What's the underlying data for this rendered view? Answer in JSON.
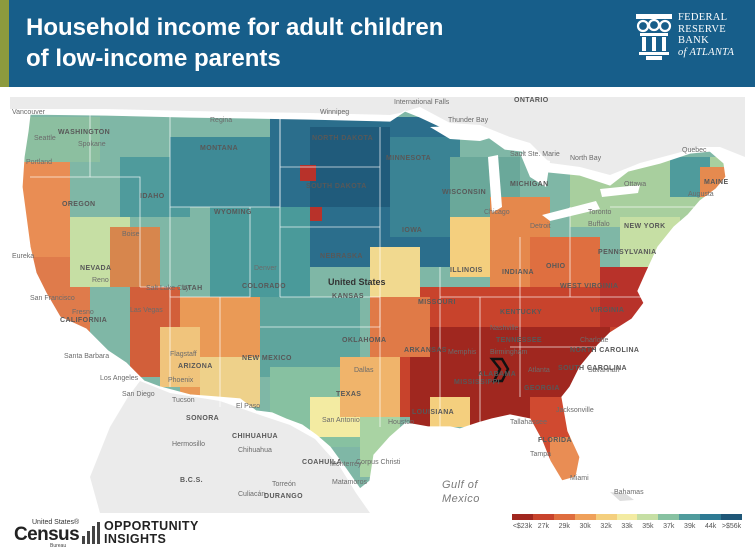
{
  "header": {
    "title": "Household income for adult children\nof low-income parents",
    "logo_lines": [
      "FEDERAL",
      "RESERVE",
      "BANK",
      "of ATLANTA"
    ]
  },
  "map": {
    "subject": "Household income for adult children of low-income parents, by commuting zone",
    "colors": {
      "low": "#9e2b23",
      "mid": "#f3eba2",
      "high": "#2a6a8a",
      "land_outside": "#ececec",
      "water": "#ffffff"
    },
    "labels": {
      "countries": [
        {
          "text": "United States"
        },
        {
          "text": "Mexico"
        }
      ],
      "water": [
        {
          "text": "Gulf of"
        },
        {
          "text": "Mexico"
        }
      ],
      "states": [
        {
          "text": "WASHINGTON"
        },
        {
          "text": "OREGON"
        },
        {
          "text": "CALIFORNIA"
        },
        {
          "text": "NEVADA"
        },
        {
          "text": "IDAHO"
        },
        {
          "text": "MONTANA"
        },
        {
          "text": "WYOMING"
        },
        {
          "text": "UTAH"
        },
        {
          "text": "COLORADO"
        },
        {
          "text": "ARIZONA"
        },
        {
          "text": "NEW MEXICO"
        },
        {
          "text": "NORTH DAKOTA"
        },
        {
          "text": "SOUTH DAKOTA"
        },
        {
          "text": "NEBRASKA"
        },
        {
          "text": "KANSAS"
        },
        {
          "text": "OKLAHOMA"
        },
        {
          "text": "TEXAS"
        },
        {
          "text": "MINNESOTA"
        },
        {
          "text": "IOWA"
        },
        {
          "text": "MISSOURI"
        },
        {
          "text": "ARKANSAS"
        },
        {
          "text": "LOUISIANA"
        },
        {
          "text": "WISCONSIN"
        },
        {
          "text": "ILLINOIS"
        },
        {
          "text": "MICHIGAN"
        },
        {
          "text": "INDIANA"
        },
        {
          "text": "OHIO"
        },
        {
          "text": "KENTUCKY"
        },
        {
          "text": "TENNESSEE"
        },
        {
          "text": "MISSISSIPPI"
        },
        {
          "text": "ALABAMA"
        },
        {
          "text": "GEORGIA"
        },
        {
          "text": "FLORIDA"
        },
        {
          "text": "SOUTH CAROLINA"
        },
        {
          "text": "NORTH CAROLINA"
        },
        {
          "text": "VIRGINIA"
        },
        {
          "text": "WEST VIRGINIA"
        },
        {
          "text": "PENNSYLVANIA"
        },
        {
          "text": "NEW YORK"
        },
        {
          "text": "MAINE"
        },
        {
          "text": "ONTARIO"
        },
        {
          "text": "CHIHUAHUA"
        },
        {
          "text": "SONORA"
        },
        {
          "text": "COAHUILA"
        },
        {
          "text": "DURANGO"
        },
        {
          "text": "B.C.S."
        }
      ],
      "cities": [
        {
          "text": "Vancouver"
        },
        {
          "text": "Seattle"
        },
        {
          "text": "Spokane"
        },
        {
          "text": "Portland"
        },
        {
          "text": "Eureka"
        },
        {
          "text": "Boise"
        },
        {
          "text": "Reno"
        },
        {
          "text": "San Francisco"
        },
        {
          "text": "Fresno"
        },
        {
          "text": "Las Vegas"
        },
        {
          "text": "Santa Barbara"
        },
        {
          "text": "Los Angeles"
        },
        {
          "text": "San Diego"
        },
        {
          "text": "Phoenix"
        },
        {
          "text": "Flagstaff"
        },
        {
          "text": "Tucson"
        },
        {
          "text": "El Paso"
        },
        {
          "text": "Hermosillo"
        },
        {
          "text": "Chihuahua"
        },
        {
          "text": "Culiacán"
        },
        {
          "text": "Torreón"
        },
        {
          "text": "Monterrey"
        },
        {
          "text": "Matamoros"
        },
        {
          "text": "Corpus Christi"
        },
        {
          "text": "San Antonio"
        },
        {
          "text": "Houston"
        },
        {
          "text": "Dallas"
        },
        {
          "text": "Denver"
        },
        {
          "text": "Salt Lake City"
        },
        {
          "text": "Thunder Bay"
        },
        {
          "text": "International Falls"
        },
        {
          "text": "Sault Ste. Marie"
        },
        {
          "text": "North Bay"
        },
        {
          "text": "Ottawa"
        },
        {
          "text": "Toronto"
        },
        {
          "text": "Quebec"
        },
        {
          "text": "Augusta"
        },
        {
          "text": "Buffalo"
        },
        {
          "text": "Detroit"
        },
        {
          "text": "Chicago"
        },
        {
          "text": "Memphis"
        },
        {
          "text": "Atlanta"
        },
        {
          "text": "Jacksonville"
        },
        {
          "text": "Tampa"
        },
        {
          "text": "Miami"
        },
        {
          "text": "Bahamas"
        },
        {
          "text": "Charlotte"
        },
        {
          "text": "Nashville"
        },
        {
          "text": "Birmingham"
        },
        {
          "text": "Tallahassee"
        },
        {
          "text": "Savannah"
        },
        {
          "text": "Regina"
        },
        {
          "text": "Winnipeg"
        }
      ]
    }
  },
  "legend": {
    "ticks": [
      "<$23k",
      "27k",
      "29k",
      "30k",
      "32k",
      "33k",
      "35k",
      "37k",
      "39k",
      "44k",
      ">$56k"
    ],
    "colors": [
      "#a0271f",
      "#c8432c",
      "#df6d3e",
      "#efa05a",
      "#f4cf7e",
      "#f3eba2",
      "#c6dfa4",
      "#87c1a1",
      "#4f9b9c",
      "#2e7a93",
      "#1f5778"
    ]
  },
  "footer": {
    "census_top": "United States®",
    "census_word": "Census",
    "census_bureau": "Bureau",
    "oi_line1": "OPPORTUNITY",
    "oi_line2": "INSIGHTS"
  }
}
